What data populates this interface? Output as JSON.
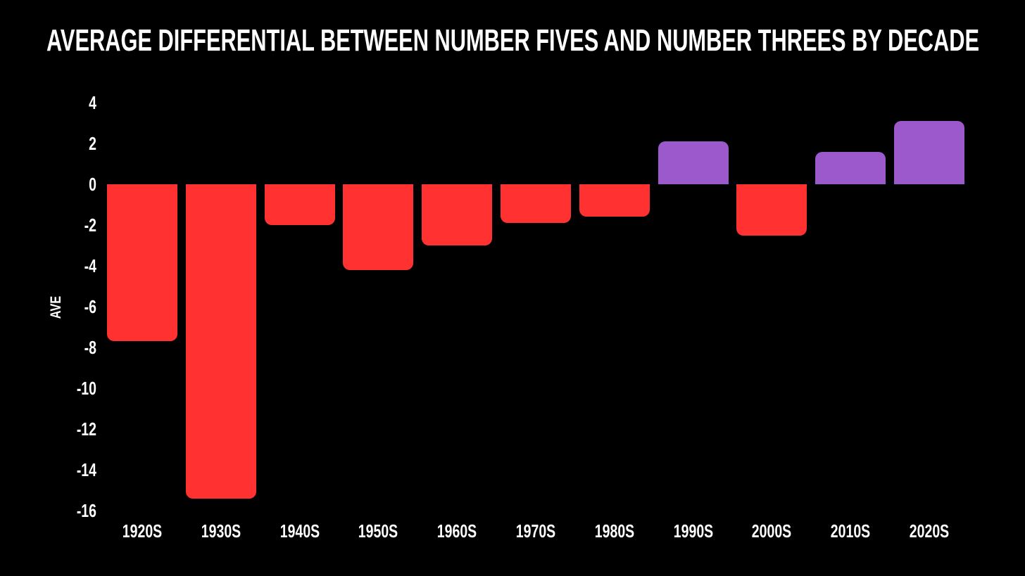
{
  "title": "AVERAGE DIFFERENTIAL BETWEEN NUMBER FIVES AND NUMBER THREES BY DECADE",
  "colors": {
    "background": "#000000",
    "text": "#ffffff",
    "negative_bar": "#ff3131",
    "positive_bar": "#9b59cc"
  },
  "chart_data": {
    "type": "bar",
    "title": "AVERAGE DIFFERENTIAL BETWEEN NUMBER FIVES AND NUMBER THREES BY DECADE",
    "xlabel": "",
    "ylabel": "AVE",
    "ylim": [
      -16,
      4
    ],
    "ytick_labels": [
      "4",
      "2",
      "0",
      "-2",
      "-4",
      "-6",
      "-8",
      "-10",
      "-12",
      "-14",
      "-16"
    ],
    "categories": [
      "1920S",
      "1930S",
      "1940S",
      "1950S",
      "1960S",
      "1970S",
      "1980S",
      "1990S",
      "2000S",
      "2010S",
      "2020S"
    ],
    "values": [
      -7.7,
      -15.4,
      -2.0,
      -4.2,
      -3.0,
      -1.9,
      -1.6,
      2.1,
      -2.5,
      1.6,
      3.1
    ],
    "negative_color": "#ff3131",
    "positive_color": "#9b59cc",
    "grid": false,
    "legend_position": "none"
  }
}
